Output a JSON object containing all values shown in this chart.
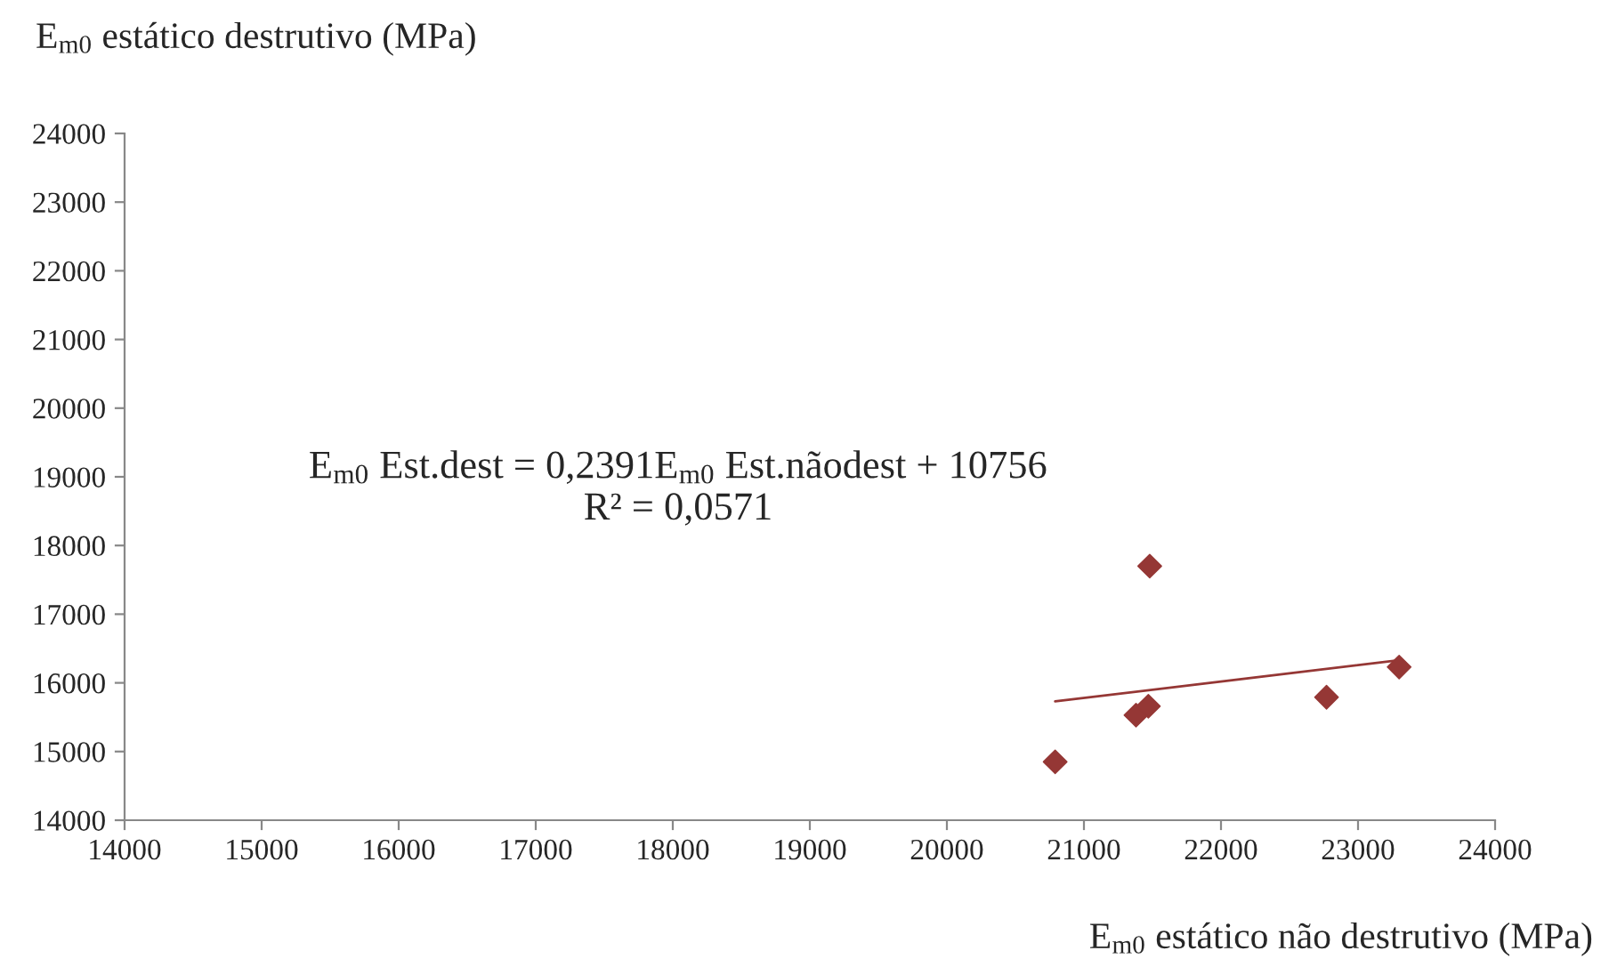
{
  "chart_data": {
    "type": "scatter",
    "xlabel": "E$_{m0}$ estático não destrutivo (MPa)",
    "ylabel": "E$_{m0}$ estático destrutivo (MPa)",
    "series": [
      {
        "color": "#953735",
        "marker": "diamond",
        "x": [
          20790,
          21380,
          21470,
          21480,
          22770,
          23300
        ],
        "values": [
          14850,
          15530,
          15660,
          17700,
          15790,
          16230
        ]
      },
      {
        "type": "line",
        "color": "#953735",
        "marker": "none",
        "x": [
          20790,
          23300
        ],
        "values": [
          15730,
          16330
        ]
      }
    ],
    "annotations": [
      "E$_{m0}$ Est.dest = 0,2391E$_{m0}$ Est.nãodest + 10756\nR² = 0,0571"
    ],
    "xlim": [
      14000,
      24000
    ],
    "xticks": [
      14000,
      15000,
      16000,
      17000,
      18000,
      19000,
      20000,
      21000,
      22000,
      23000,
      24000
    ],
    "ylim": [
      14000,
      24000
    ],
    "yticks": [
      14000,
      15000,
      16000,
      17000,
      18000,
      19000,
      20000,
      21000,
      22000,
      23000,
      24000
    ],
    "grid": false,
    "legend": false
  }
}
